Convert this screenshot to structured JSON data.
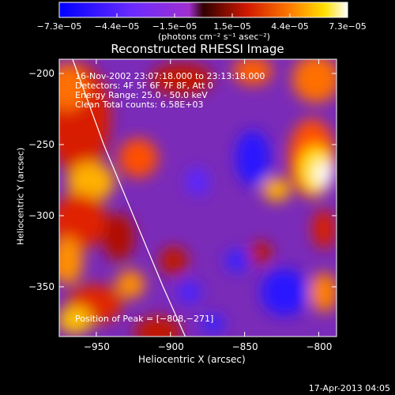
{
  "colorbar": {
    "ticks": [
      "−7.3e−05",
      "−4.4e−05",
      "−1.5e−05",
      "1.5e−05",
      "4.4e−05",
      "7.3e−05"
    ],
    "units": "(photons cm⁻² s⁻¹ asec⁻²)",
    "colors": [
      "#1a00ff",
      "#5a2bff",
      "#8a2be2",
      "#4a0000",
      "#cc1a00",
      "#ff6a00",
      "#ffd400",
      "#ffffff"
    ]
  },
  "chart_data": {
    "type": "heatmap",
    "title": "Reconstructed RHESSI Image",
    "xlabel": "Heliocentric X (arcsec)",
    "ylabel": "Heliocentric Y (arcsec)",
    "xlim": [
      -975,
      -788
    ],
    "ylim": [
      -385,
      -190
    ],
    "x_ticks": [
      -950,
      -900,
      -850,
      -800
    ],
    "y_ticks": [
      -200,
      -250,
      -300,
      -350
    ],
    "x_tick_labels": [
      "−950",
      "−900",
      "−850",
      "−800"
    ],
    "y_tick_labels": [
      "−200",
      "−250",
      "−300",
      "−350"
    ],
    "color_range": [
      -7.3e-05,
      7.3e-05
    ],
    "annotations": [
      "16-Nov-2002 23:07:18.000 to 23:13:18.000",
      "Detectors: 4F 5F 6F 7F 8F, Att 0",
      "Energy Range: 25.0 - 50.0 keV",
      "Clean  Total counts: 6.58E+03",
      "Position of Peak = [−808,−271]"
    ],
    "peak": [
      -808,
      -271
    ],
    "limb_curve": [
      [
        -966,
        -190
      ],
      [
        -945,
        -250
      ],
      [
        -925,
        -300
      ],
      [
        -905,
        -350
      ],
      [
        -890,
        -385
      ]
    ]
  },
  "timestamp": "17-Apr-2013 04:05"
}
